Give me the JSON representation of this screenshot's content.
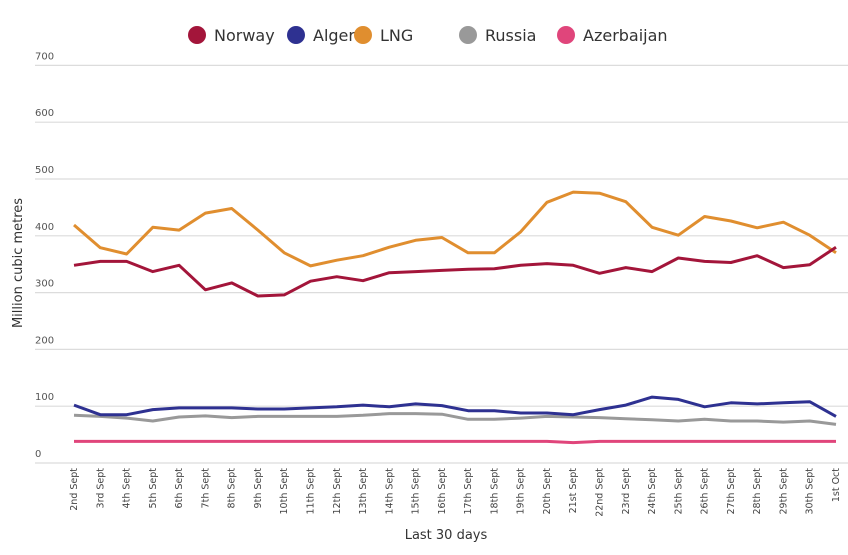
{
  "chart_data": {
    "type": "line",
    "title": "",
    "xlabel": "Last 30 days",
    "ylabel": "Million cubic metres",
    "ylim": [
      0,
      700
    ],
    "yticks": [
      0,
      100,
      200,
      300,
      400,
      500,
      600,
      700
    ],
    "grid": true,
    "legend_position": "top",
    "categories": [
      "2nd Sept",
      "3rd Sept",
      "4th Sept",
      "5th Sept",
      "6th Sept",
      "7th Sept",
      "8th Sept",
      "9th Sept",
      "10th Sept",
      "11th Sept",
      "12th Sept",
      "13th Sept",
      "14th Sept",
      "15th Sept",
      "16th Sept",
      "17th Sept",
      "18th Sept",
      "19th Sept",
      "20th Sept",
      "21st Sept",
      "22nd Sept",
      "23rd Sept",
      "24th Sept",
      "25th Sept",
      "26th Sept",
      "27th Sept",
      "28th Sept",
      "29th Sept",
      "30th Sept",
      "1st Oct"
    ],
    "series": [
      {
        "name": "Norway",
        "color": "#a3153a",
        "values": [
          348,
          355,
          355,
          337,
          348,
          305,
          317,
          294,
          296,
          320,
          328,
          321,
          335,
          337,
          339,
          341,
          342,
          348,
          351,
          348,
          334,
          344,
          337,
          361,
          355,
          353,
          365,
          344,
          349,
          380
        ]
      },
      {
        "name": "Algeria",
        "color": "#2e3191",
        "values": [
          102,
          85,
          85,
          94,
          97,
          97,
          97,
          95,
          95,
          97,
          99,
          102,
          99,
          104,
          101,
          92,
          92,
          88,
          88,
          85,
          94,
          102,
          116,
          112,
          99,
          106,
          104,
          106,
          108,
          82
        ]
      },
      {
        "name": "LNG",
        "color": "#e08e2f",
        "values": [
          419,
          379,
          368,
          415,
          410,
          440,
          448,
          410,
          370,
          347,
          357,
          365,
          380,
          392,
          397,
          370,
          370,
          407,
          459,
          477,
          475,
          460,
          415,
          401,
          434,
          426,
          414,
          424,
          401,
          370
        ]
      },
      {
        "name": "Russia",
        "color": "#999999",
        "values": [
          84,
          82,
          79,
          74,
          81,
          83,
          80,
          82,
          82,
          82,
          82,
          84,
          87,
          87,
          86,
          77,
          77,
          79,
          82,
          81,
          80,
          78,
          76,
          74,
          77,
          74,
          74,
          72,
          74,
          68
        ]
      },
      {
        "name": "Azerbaijan",
        "color": "#e0457b",
        "values": [
          38,
          38,
          38,
          38,
          38,
          38,
          38,
          38,
          38,
          38,
          38,
          38,
          38,
          38,
          38,
          38,
          38,
          38,
          38,
          36,
          38,
          38,
          38,
          38,
          38,
          38,
          38,
          38,
          38,
          38
        ]
      }
    ]
  }
}
